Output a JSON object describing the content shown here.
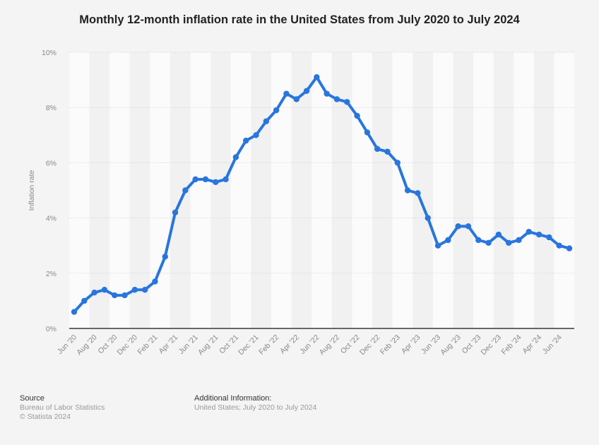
{
  "chart_data": {
    "type": "line",
    "title": "Monthly 12-month inflation rate in the United States from July 2020 to July 2024",
    "ylabel": "Inflation rate",
    "xlabel": "",
    "ylim": [
      0,
      10
    ],
    "y_ticks": [
      "0%",
      "2%",
      "4%",
      "6%",
      "8%",
      "10%"
    ],
    "grid": true,
    "x": [
      "Jun '20",
      "Jul '20",
      "Aug '20",
      "Sep '20",
      "Oct '20",
      "Nov '20",
      "Dec '20",
      "Jan '21",
      "Feb '21",
      "Mar '21",
      "Apr '21",
      "May '21",
      "Jun '21",
      "Jul '21",
      "Aug '21",
      "Sep '21",
      "Oct '21",
      "Nov '21",
      "Dec '21",
      "Jan '22",
      "Feb '22",
      "Mar '22",
      "Apr '22",
      "May '22",
      "Jun '22",
      "Jul '22",
      "Aug '22",
      "Sep '22",
      "Oct '22",
      "Nov '22",
      "Dec '22",
      "Jan '23",
      "Feb '23",
      "Mar '23",
      "Apr '23",
      "May '23",
      "Jun '23",
      "Jul '23",
      "Aug '23",
      "Sep '23",
      "Oct '23",
      "Nov '23",
      "Dec '23",
      "Jan '24",
      "Feb '24",
      "Mar '24",
      "Apr '24",
      "May '24",
      "Jun '24",
      "Jul '24"
    ],
    "x_tick_labels": [
      "Jun '20",
      "Aug '20",
      "Oct '20",
      "Dec '20",
      "Feb '21",
      "Apr '21",
      "Jun '21",
      "Aug '21",
      "Oct '21",
      "Dec '21",
      "Feb '22",
      "Apr '22",
      "Jun '22",
      "Aug '22",
      "Oct '22",
      "Dec '22",
      "Feb '23",
      "Apr '23",
      "Jun '23",
      "Aug '23",
      "Oct '23",
      "Dec '23",
      "Feb '24",
      "Apr '24",
      "Jun '24"
    ],
    "series": [
      {
        "values": [
          0.6,
          1.0,
          1.3,
          1.4,
          1.2,
          1.2,
          1.4,
          1.4,
          1.7,
          2.6,
          4.2,
          5.0,
          5.4,
          5.4,
          5.3,
          5.4,
          6.2,
          6.8,
          7.0,
          7.5,
          7.9,
          8.5,
          8.3,
          8.6,
          9.1,
          8.5,
          8.3,
          8.2,
          7.7,
          7.1,
          6.5,
          6.4,
          6.0,
          5.0,
          4.9,
          4.0,
          3.0,
          3.2,
          3.7,
          3.7,
          3.2,
          3.1,
          3.4,
          3.1,
          3.2,
          3.5,
          3.4,
          3.3,
          3.0,
          2.9
        ],
        "color": "#2876dd"
      }
    ]
  },
  "footer": {
    "source_heading": "Source",
    "source_name": "Bureau of Labor Statistics",
    "copyright": "© Statista 2024",
    "info_heading": "Additional Information:",
    "info_text": "United States; July 2020 to July 2024"
  }
}
